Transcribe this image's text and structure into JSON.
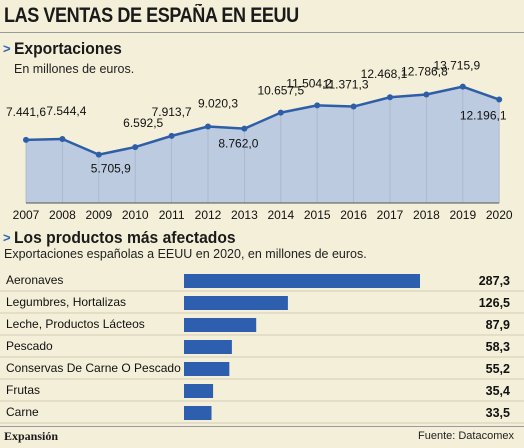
{
  "title": "LAS VENTAS DE ESPAÑA EN EEUU",
  "section1": {
    "title": "Exportaciones",
    "subtitle": "En millones de euros."
  },
  "section2": {
    "title": "Los productos más afectados",
    "subtitle": "Exportaciones españolas a EEUU en 2020, en millones de euros."
  },
  "footer": {
    "brand": "Expansión",
    "source": "Fuente: Datacomex"
  },
  "colors": {
    "line": "#2f5ea8",
    "area": "#bccbe0",
    "bar": "#2e5fae",
    "accent": "#2f63b0",
    "background": "#f4efd9"
  },
  "chart_data": [
    {
      "type": "area",
      "title": "Exportaciones",
      "subtitle": "En millones de euros.",
      "x": [
        "2007",
        "2008",
        "2009",
        "2010",
        "2011",
        "2012",
        "2013",
        "2014",
        "2015",
        "2016",
        "2017",
        "2018",
        "2019",
        "2020"
      ],
      "values": [
        7441.6,
        7544.4,
        5705.9,
        6592.5,
        7913.7,
        9020.3,
        8762.0,
        10657.5,
        11504.2,
        11371.3,
        12468.1,
        12786.8,
        13715.9,
        12196.1
      ],
      "value_labels": [
        "7.441,6",
        "7.544,4",
        "5.705,9",
        "6.592,5",
        "7.913,7",
        "9.020,3",
        "8.762,0",
        "10.657,5",
        "11.504,2",
        "11.371,3",
        "12.468,1",
        "12.786,8",
        "13.715,9",
        "12.196,1"
      ],
      "xlabel": "",
      "ylabel": "",
      "ylim": [
        0,
        14500
      ],
      "grid": false
    },
    {
      "type": "bar",
      "orientation": "horizontal",
      "title": "Los productos más afectados",
      "subtitle": "Exportaciones españolas a EEUU en 2020, en millones de euros.",
      "categories": [
        "Aeronaves",
        "Legumbres, Hortalizas",
        "Leche, Productos Lácteos",
        "Pescado",
        "Conservas De Carne O Pescado",
        "Frutas",
        "Carne"
      ],
      "values": [
        287.3,
        126.5,
        87.9,
        58.3,
        55.2,
        35.4,
        33.5
      ],
      "value_labels": [
        "287,3",
        "126,5",
        "87,9",
        "58,3",
        "55,2",
        "35,4",
        "33,5"
      ],
      "xlim": [
        0,
        287.3
      ]
    }
  ]
}
